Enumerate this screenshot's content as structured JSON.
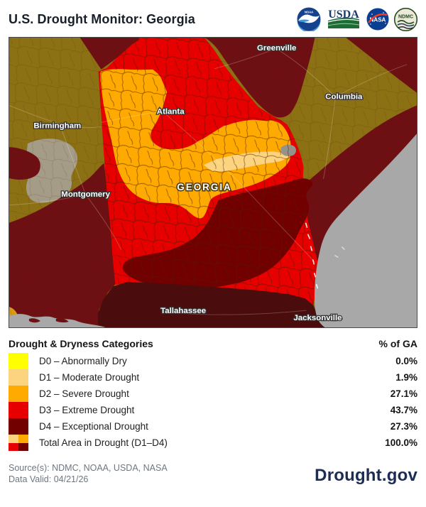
{
  "header": {
    "title": "U.S. Drought Monitor: Georgia",
    "logos": [
      {
        "name": "noaa-logo",
        "text": "NOAA"
      },
      {
        "name": "usda-logo",
        "text": "USDA"
      },
      {
        "name": "nasa-logo",
        "text": "NASA"
      },
      {
        "name": "ndmc-logo",
        "text": "NDMC"
      }
    ]
  },
  "map": {
    "state_label": "GEORGIA",
    "cities": [
      {
        "name": "Greenville"
      },
      {
        "name": "Columbia"
      },
      {
        "name": "Atlanta"
      },
      {
        "name": "Birmingham"
      },
      {
        "name": "Montgomery"
      },
      {
        "name": "Tallahassee"
      },
      {
        "name": "Jacksonville"
      }
    ],
    "colors": {
      "d0_yellow": "#ffff00",
      "d1_tan": "#fcd37f",
      "d2_orange": "#ffaa00",
      "d3_red": "#e60000",
      "d4_dark_red": "#730000",
      "out_of_state_dry": "#8c7014",
      "out_of_state_drought": "#6e1013",
      "out_of_state_exceptional": "#4a0c0c",
      "water_gray": "#a8a8a8",
      "urban_gray": "#a59c88"
    }
  },
  "legend": {
    "title": "Drought & Dryness Categories",
    "value_header": "% of GA",
    "rows": [
      {
        "label": "D0 – Abnormally Dry",
        "value": "0.0%",
        "color": "#ffff00"
      },
      {
        "label": "D1 – Moderate Drought",
        "value": "1.9%",
        "color": "#fcd37f"
      },
      {
        "label": "D2 – Severe Drought",
        "value": "27.1%",
        "color": "#ffaa00"
      },
      {
        "label": "D3 – Extreme Drought",
        "value": "43.7%",
        "color": "#e60000"
      },
      {
        "label": "D4 – Exceptional Drought",
        "value": "27.3%",
        "color": "#730000"
      },
      {
        "label": "Total Area in Drought (D1–D4)",
        "value": "100.0%",
        "colors": [
          "#fcd37f",
          "#ffaa00",
          "#e60000",
          "#730000"
        ]
      }
    ]
  },
  "footer": {
    "source": "Source(s): NDMC, NOAA, USDA, NASA",
    "data_valid": "Data Valid: 04/21/26",
    "brand": "Drought.gov"
  }
}
